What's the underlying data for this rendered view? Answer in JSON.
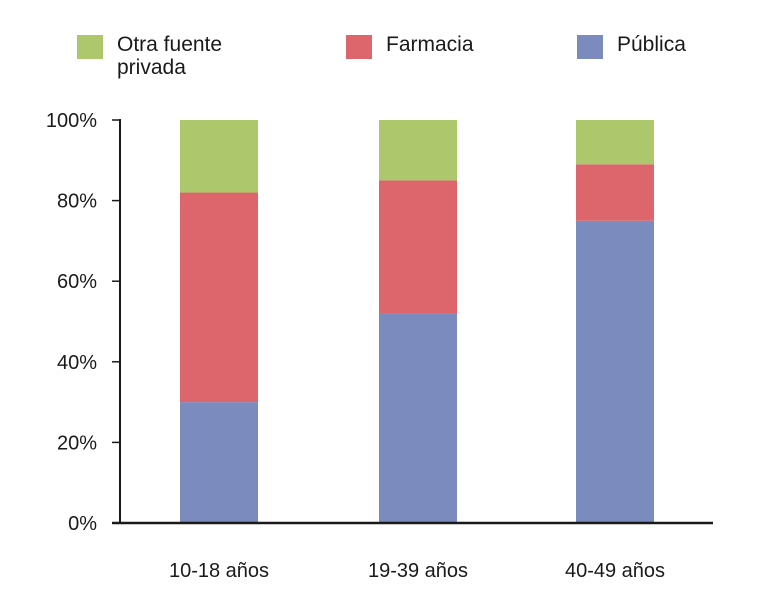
{
  "chart_data": {
    "type": "bar",
    "stacked": true,
    "categories": [
      "10-18 años",
      "19-39 años",
      "40-49 años"
    ],
    "series": [
      {
        "name": "Pública",
        "color": "#7b8bbd",
        "values": [
          30,
          52,
          75
        ]
      },
      {
        "name": "Farmacia",
        "color": "#dc666c",
        "values": [
          52,
          33,
          14
        ]
      },
      {
        "name": "Otra fuente privada",
        "color": "#acc76c",
        "values": [
          18,
          15,
          11
        ]
      }
    ],
    "ylim": [
      0,
      100
    ],
    "yticks": [
      "0%",
      "20%",
      "40%",
      "60%",
      "80%",
      "100%"
    ],
    "grid": false,
    "legend_position": "top"
  },
  "legend": [
    {
      "label": "Otra fuente privada",
      "color": "#acc76c"
    },
    {
      "label": "Farmacia",
      "color": "#dc666c"
    },
    {
      "label": "Pública",
      "color": "#7b8bbd"
    }
  ]
}
